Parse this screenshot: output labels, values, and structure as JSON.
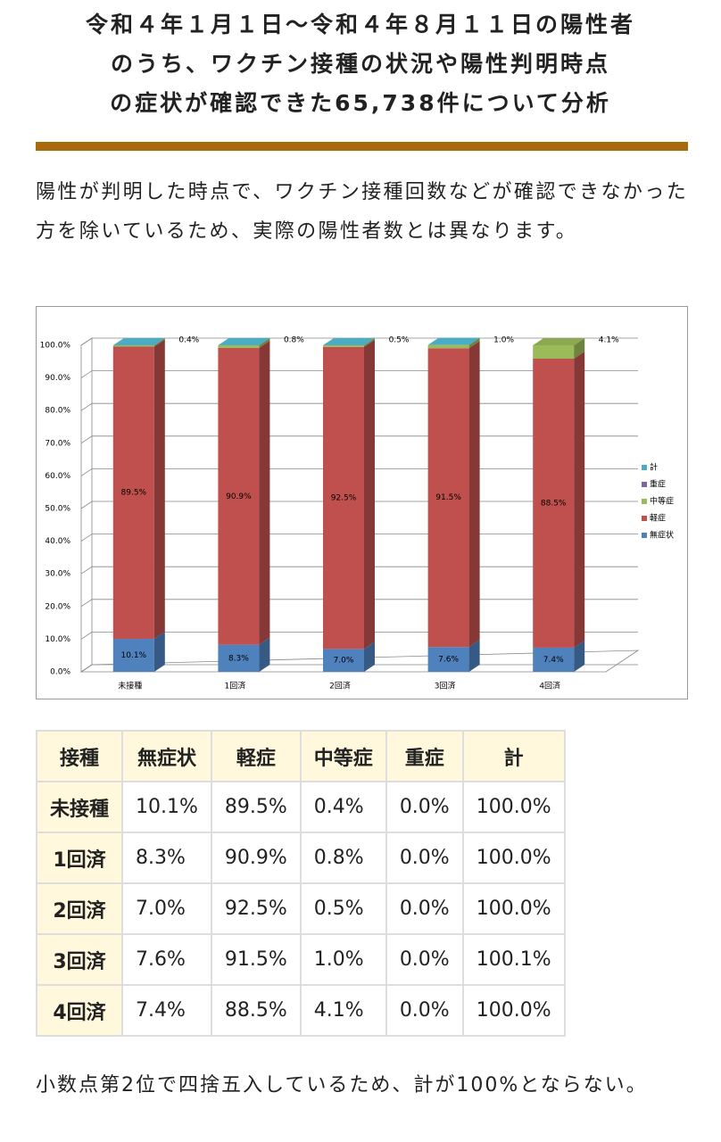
{
  "heading": {
    "lines": [
      "令和４年１月１日～令和４年８月１１日の陽性者",
      "のうち、ワクチン接種の状況や陽性判明時点",
      "の症状が確認できた65,738件について分析"
    ]
  },
  "note": "陽性が判明した時点で、ワクチン接種回数などが確認できなかった方を除いているため、実際の陽性者数とは異なります。",
  "chart_data": {
    "type": "stacked-bar-3d",
    "categories": [
      "未接種",
      "1回済",
      "2回済",
      "3回済",
      "4回済"
    ],
    "series": [
      {
        "name": "無症状",
        "color": "#4f81bd",
        "values": [
          10.1,
          8.3,
          7.0,
          7.6,
          7.4
        ],
        "value_labels": [
          "10.1%",
          "8.3%",
          "7.0%",
          "7.6%",
          "7.4%"
        ]
      },
      {
        "name": "軽症",
        "color": "#c0504d",
        "values": [
          89.5,
          90.9,
          92.5,
          91.5,
          88.5
        ],
        "value_labels": [
          "89.5%",
          "90.9%",
          "92.5%",
          "91.5%",
          "88.5%"
        ]
      },
      {
        "name": "中等症",
        "color": "#9bbb59",
        "values": [
          0.4,
          0.8,
          0.5,
          1.0,
          4.1
        ],
        "value_labels": [
          "0.4%",
          "0.8%",
          "0.5%",
          "1.0%",
          "4.1%"
        ]
      },
      {
        "name": "重症",
        "color": "#8064a2",
        "values": [
          0,
          0,
          0,
          0,
          0
        ]
      },
      {
        "name": "計",
        "color": "#4bacc6",
        "values": [
          0,
          0,
          0,
          0,
          0
        ]
      }
    ],
    "ylim": [
      0,
      100
    ],
    "yticks": [
      {
        "value": 0,
        "label": "0.0%"
      },
      {
        "value": 10,
        "label": "10.0%"
      },
      {
        "value": 20,
        "label": "20.0%"
      },
      {
        "value": 30,
        "label": "30.0%"
      },
      {
        "value": 40,
        "label": "40.0%"
      },
      {
        "value": 50,
        "label": "50.0%"
      },
      {
        "value": 60,
        "label": "60.0%"
      },
      {
        "value": 70,
        "label": "70.0%"
      },
      {
        "value": 80,
        "label": "80.0%"
      },
      {
        "value": 90,
        "label": "90.0%"
      },
      {
        "value": 100,
        "label": "100.0%"
      }
    ],
    "grid": true,
    "legend": "right"
  },
  "table": {
    "header": [
      "接種",
      "無症状",
      "軽症",
      "中等症",
      "重症",
      "計"
    ],
    "rows": [
      [
        "未接種",
        "10.1%",
        "89.5%",
        "0.4%",
        "0.0%",
        "100.0%"
      ],
      [
        "1回済",
        "8.3%",
        "90.9%",
        "0.8%",
        "0.0%",
        "100.0%"
      ],
      [
        "2回済",
        "7.0%",
        "92.5%",
        "0.5%",
        "0.0%",
        "100.0%"
      ],
      [
        "3回済",
        "7.6%",
        "91.5%",
        "1.0%",
        "0.0%",
        "100.1%"
      ],
      [
        "4回済",
        "7.4%",
        "88.5%",
        "4.1%",
        "0.0%",
        "100.0%"
      ]
    ]
  },
  "footnote": "小数点第2位で四捨五入しているため、計が100%とならない。"
}
